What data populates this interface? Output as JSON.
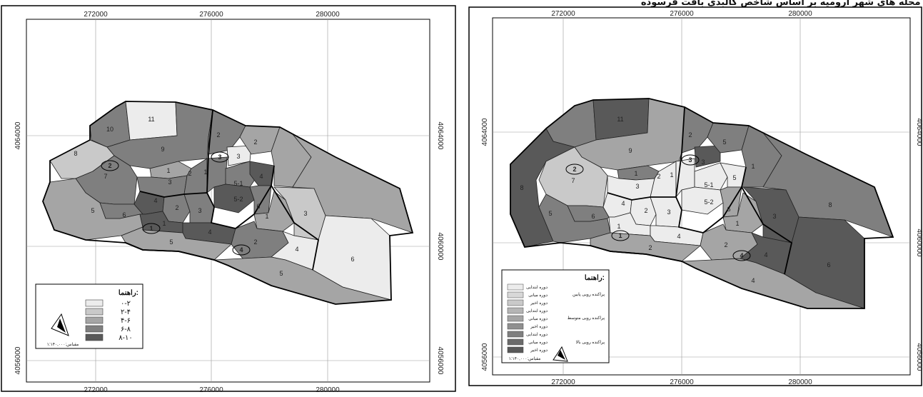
{
  "colors": {
    "c1": "#ececec",
    "c2": "#c9c9c9",
    "c3": "#a5a5a5",
    "c4": "#7f7f7f",
    "c5": "#595959"
  },
  "left_map": {
    "x_ticks": [
      "272000",
      "276000",
      "280000"
    ],
    "y_ticks": [
      "4064000",
      "4060000",
      "4056000"
    ],
    "legend": {
      "title": "راهنما:",
      "classes": [
        "۰-۲",
        "۲-۴",
        "۴-۶",
        "۶-۸",
        "۸-۱۰"
      ],
      "scale": "مقیاس:۱:۱۴۰,۰۰۰"
    },
    "zone_labels": [
      "11",
      "10",
      "9",
      "8",
      "7",
      "2",
      "1",
      "2",
      "3",
      "4",
      "5",
      "6",
      "1",
      "2",
      "3",
      "4",
      "5",
      "1",
      "2",
      "3",
      "4",
      "5-1",
      "5-2",
      "6",
      "1",
      "2",
      "3",
      "4",
      "5",
      "6"
    ],
    "district_numbers": [
      "2",
      "1",
      "3",
      "4"
    ]
  },
  "right_map": {
    "header": "تیپ بندی محله های شهر ارومیه بر اساس شاخص کالبدی بافت فرسوده",
    "x_ticks": [
      "272000",
      "276000",
      "280000"
    ],
    "y_ticks": [
      "4064000",
      "4060000",
      "4056000"
    ],
    "legend": {
      "title": "راهنما:",
      "items": [
        "دوره ابتدایی",
        "دوره میانی",
        "دوره اخیر",
        "دوره ابتدایی",
        "دوره میانی",
        "دوره اخیر",
        "دوره ابتدایی",
        "دوره میانی",
        "دوره اخیر"
      ],
      "groups": [
        "پراکنده رویی پایین",
        "پراکنده رویی متوسط",
        "پراکنده رویی بالا"
      ],
      "scale": "مقیاس:۱:۱۴۰,۰۰۰"
    },
    "zone_labels": [
      "11",
      "9",
      "8",
      "7",
      "2",
      "1",
      "2",
      "3",
      "4",
      "1",
      "2",
      "3",
      "4",
      "5",
      "5-1",
      "5-2",
      "1",
      "6",
      "1",
      "2",
      "3",
      "4",
      "5",
      "6",
      "1",
      "2",
      "3",
      "4",
      "5",
      "6",
      "8"
    ],
    "district_numbers": [
      "2",
      "1",
      "3",
      "4"
    ]
  }
}
